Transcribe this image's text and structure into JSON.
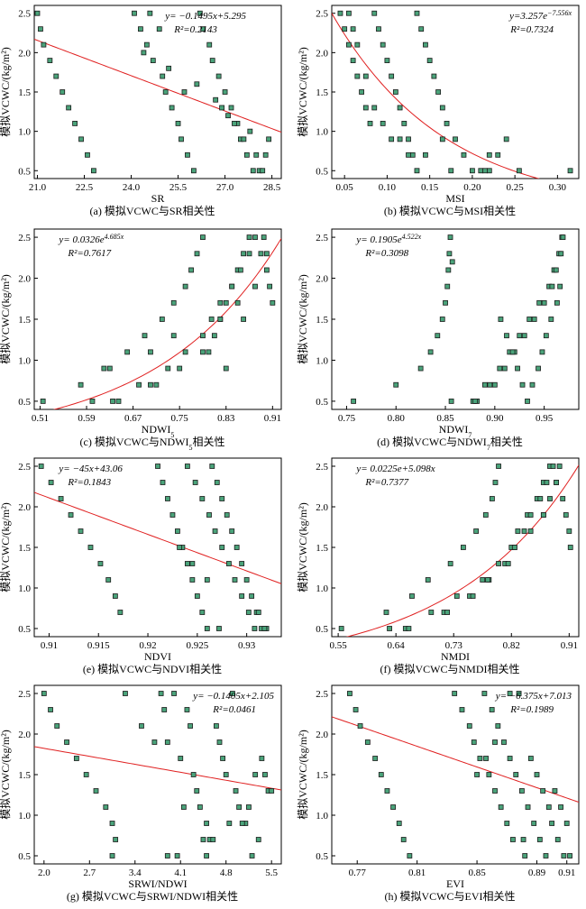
{
  "chart_data": [
    {
      "type": "scatter",
      "caption": "(a) 模拟VCWC与SR相关性",
      "xlabel": "SR",
      "ylabel": "模拟VCWC/(kg/m²)",
      "xlim": [
        20.9,
        28.8
      ],
      "ylim": [
        0.4,
        2.6
      ],
      "xticks": [
        21.0,
        22.5,
        24.0,
        25.5,
        27.0,
        28.5
      ],
      "xtick_labels": [
        "21.0",
        "22.5",
        "24.0",
        "25.5",
        "27.0",
        "28.5"
      ],
      "yticks": [
        0.5,
        1.0,
        1.5,
        2.0,
        2.5
      ],
      "ytick_labels": [
        "0.5",
        "1.0",
        "1.5",
        "2.0",
        "2.5"
      ],
      "equation": "y= −0.1495x+5.295",
      "r2": "R²=0.2143",
      "equation_pos": "top-center",
      "fit": {
        "kind": "linear",
        "a": -0.1495,
        "b": 5.295
      },
      "x": [
        21.0,
        21.1,
        21.2,
        21.4,
        21.6,
        21.8,
        22.0,
        22.2,
        22.4,
        22.6,
        22.8,
        24.1,
        24.3,
        24.5,
        24.7,
        25.0,
        25.1,
        25.3,
        25.5,
        25.6,
        25.8,
        26.0,
        26.2,
        26.3,
        26.5,
        26.6,
        26.8,
        27.0,
        27.2,
        27.4,
        27.5,
        27.7,
        27.9,
        28.1,
        28.3,
        28.4,
        24.6,
        24.9,
        25.7,
        26.9,
        27.3,
        27.6,
        28.0,
        28.2,
        24.4,
        25.2,
        26.1,
        26.7,
        27.1,
        27.8
      ],
      "y": [
        2.5,
        2.3,
        2.1,
        1.9,
        1.7,
        1.5,
        1.3,
        1.1,
        0.9,
        0.7,
        0.5,
        2.5,
        2.3,
        2.1,
        1.9,
        1.7,
        1.5,
        1.3,
        1.1,
        0.9,
        0.7,
        0.5,
        2.5,
        2.3,
        2.1,
        1.9,
        1.7,
        1.5,
        1.3,
        1.1,
        0.9,
        0.7,
        0.5,
        0.5,
        0.7,
        0.9,
        2.5,
        2.3,
        1.5,
        1.3,
        1.1,
        0.9,
        0.7,
        0.5,
        2.0,
        1.8,
        1.6,
        1.4,
        1.2,
        1.0
      ]
    },
    {
      "type": "scatter",
      "caption": "(b) 模拟VCWC与MSI相关性",
      "xlabel": "MSI",
      "ylabel": "模拟VCWC/(kg/m²)",
      "xlim": [
        0.035,
        0.325
      ],
      "ylim": [
        0.4,
        2.6
      ],
      "xticks": [
        0.05,
        0.1,
        0.15,
        0.2,
        0.25,
        0.3
      ],
      "xtick_labels": [
        "0.05",
        "0.10",
        "0.15",
        "0.20",
        "0.25",
        "0.30"
      ],
      "yticks": [
        0.5,
        1.0,
        1.5,
        2.0,
        2.5
      ],
      "ytick_labels": [
        "0.5",
        "1.0",
        "1.5",
        "2.0",
        "2.5"
      ],
      "equation": "y=3.257e^(−7.556x)",
      "r2": "R²=0.7324",
      "equation_pos": "top-right",
      "fit": {
        "kind": "exp",
        "a": 3.257,
        "b": -7.556
      },
      "x": [
        0.045,
        0.05,
        0.055,
        0.06,
        0.065,
        0.07,
        0.075,
        0.08,
        0.085,
        0.09,
        0.095,
        0.1,
        0.105,
        0.11,
        0.115,
        0.12,
        0.125,
        0.13,
        0.135,
        0.14,
        0.145,
        0.15,
        0.155,
        0.16,
        0.165,
        0.17,
        0.18,
        0.19,
        0.2,
        0.21,
        0.22,
        0.23,
        0.24,
        0.255,
        0.315,
        0.055,
        0.065,
        0.075,
        0.085,
        0.095,
        0.105,
        0.115,
        0.125,
        0.135,
        0.145,
        0.165,
        0.175,
        0.215,
        0.22,
        0.06
      ],
      "y": [
        2.5,
        2.3,
        2.1,
        1.9,
        1.7,
        1.5,
        1.3,
        1.1,
        2.5,
        2.3,
        2.1,
        1.9,
        1.7,
        1.5,
        1.3,
        1.1,
        0.9,
        0.7,
        2.5,
        2.3,
        2.1,
        1.9,
        1.7,
        1.5,
        1.3,
        1.1,
        0.9,
        0.7,
        0.5,
        0.5,
        0.5,
        0.7,
        0.9,
        0.5,
        0.5,
        2.5,
        2.1,
        1.7,
        1.3,
        1.1,
        0.9,
        0.9,
        0.7,
        0.5,
        0.7,
        0.9,
        0.5,
        0.5,
        0.7,
        2.3
      ]
    },
    {
      "type": "scatter",
      "caption": "(c) 模拟VCWC与NDWI5相关性",
      "xlabel": "NDWI5",
      "ylabel": "模拟VCWC/(kg/m²)",
      "xlim": [
        0.5,
        0.925
      ],
      "ylim": [
        0.4,
        2.6
      ],
      "xticks": [
        0.51,
        0.59,
        0.67,
        0.75,
        0.83,
        0.91
      ],
      "xtick_labels": [
        "0.51",
        "0.59",
        "0.67",
        "0.75",
        "0.83",
        "0.91"
      ],
      "yticks": [
        0.5,
        1.0,
        1.5,
        2.0,
        2.5
      ],
      "ytick_labels": [
        "0.5",
        "1.0",
        "1.5",
        "2.0",
        "2.5"
      ],
      "equation": "y= 0.0326e^(4.685x)",
      "r2": "R²=0.7617",
      "equation_pos": "top-left",
      "fit": {
        "kind": "exp",
        "a": 0.0326,
        "b": 4.685
      },
      "x": [
        0.515,
        0.58,
        0.6,
        0.62,
        0.635,
        0.645,
        0.66,
        0.68,
        0.69,
        0.7,
        0.71,
        0.72,
        0.73,
        0.74,
        0.75,
        0.76,
        0.77,
        0.78,
        0.79,
        0.8,
        0.81,
        0.82,
        0.83,
        0.84,
        0.85,
        0.86,
        0.87,
        0.88,
        0.89,
        0.9,
        0.905,
        0.91,
        0.76,
        0.79,
        0.82,
        0.85,
        0.88,
        0.87,
        0.855,
        0.84,
        0.82,
        0.805,
        0.895,
        0.9,
        0.86,
        0.63,
        0.7,
        0.74,
        0.79,
        0.83
      ],
      "y": [
        0.5,
        0.7,
        0.5,
        0.9,
        0.5,
        0.5,
        1.1,
        0.7,
        1.3,
        0.7,
        0.7,
        1.5,
        0.9,
        1.7,
        0.9,
        1.9,
        2.1,
        2.3,
        2.5,
        1.1,
        1.3,
        1.5,
        1.7,
        1.9,
        2.1,
        2.3,
        2.5,
        2.5,
        2.3,
        2.1,
        1.9,
        1.7,
        1.1,
        1.3,
        1.5,
        1.7,
        1.9,
        2.3,
        2.1,
        1.9,
        1.7,
        1.5,
        2.5,
        2.3,
        1.5,
        0.9,
        1.1,
        1.3,
        1.1,
        0.9
      ]
    },
    {
      "type": "scatter",
      "caption": "(d) 模拟VCWC与NDWI7相关性",
      "xlabel": "NDWI7",
      "ylabel": "模拟VCWC/(kg/m²)",
      "xlim": [
        0.735,
        0.985
      ],
      "ylim": [
        0.4,
        2.6
      ],
      "xticks": [
        0.75,
        0.8,
        0.85,
        0.9,
        0.95
      ],
      "xtick_labels": [
        "0.75",
        "0.80",
        "0.85",
        "0.90",
        "0.95"
      ],
      "yticks": [
        0.5,
        1.0,
        1.5,
        2.0,
        2.5
      ],
      "ytick_labels": [
        "0.5",
        "1.0",
        "1.5",
        "2.0",
        "2.5"
      ],
      "equation": "y= 0.1905e^(4.522x)",
      "r2": "R²=0.3098",
      "equation_pos": "top-left",
      "fit": {
        "kind": "exp",
        "a": 0.1905,
        "b": 4.522
      },
      "x": [
        0.757,
        0.8,
        0.825,
        0.835,
        0.842,
        0.847,
        0.85,
        0.852,
        0.853,
        0.854,
        0.855,
        0.856,
        0.857,
        0.878,
        0.882,
        0.89,
        0.895,
        0.905,
        0.91,
        0.915,
        0.92,
        0.925,
        0.93,
        0.935,
        0.94,
        0.945,
        0.95,
        0.955,
        0.958,
        0.96,
        0.962,
        0.965,
        0.967,
        0.968,
        0.969,
        0.966,
        0.963,
        0.957,
        0.952,
        0.948,
        0.944,
        0.938,
        0.933,
        0.928,
        0.923,
        0.918,
        0.912,
        0.906,
        0.9,
        0.88
      ],
      "y": [
        0.5,
        0.7,
        0.9,
        1.1,
        1.3,
        1.5,
        1.7,
        1.9,
        2.1,
        2.3,
        2.5,
        0.5,
        2.2,
        0.5,
        0.5,
        0.7,
        0.7,
        0.9,
        0.9,
        1.1,
        1.1,
        1.3,
        1.3,
        1.5,
        1.5,
        1.7,
        1.7,
        1.9,
        1.9,
        2.1,
        2.1,
        2.3,
        2.3,
        2.5,
        2.5,
        1.9,
        1.7,
        1.5,
        1.3,
        1.1,
        0.9,
        0.7,
        0.5,
        0.7,
        0.9,
        1.1,
        1.3,
        1.5,
        0.7,
        0.5
      ]
    },
    {
      "type": "scatter",
      "caption": "(e) 模拟VCWC与NDVI相关性",
      "xlabel": "NDVI",
      "ylabel": "模拟VCWC/(kg/m²)",
      "xlim": [
        0.9085,
        0.9335
      ],
      "ylim": [
        0.4,
        2.6
      ],
      "xticks": [
        0.91,
        0.915,
        0.92,
        0.925,
        0.93
      ],
      "xtick_labels": [
        "0.91",
        "0.915",
        "0.92",
        "0.925",
        "0.93"
      ],
      "yticks": [
        0.5,
        1.0,
        1.5,
        2.0,
        2.5
      ],
      "ytick_labels": [
        "0.5",
        "1.0",
        "1.5",
        "2.0",
        "2.5"
      ],
      "equation": "y= −45x+43.06",
      "r2": "R²=0.1843",
      "equation_pos": "top-left",
      "fit": {
        "kind": "linear",
        "a": -45,
        "b": 43.06
      },
      "x": [
        0.9092,
        0.9102,
        0.9112,
        0.9122,
        0.9132,
        0.9142,
        0.9152,
        0.916,
        0.9167,
        0.9172,
        0.921,
        0.9215,
        0.922,
        0.9225,
        0.923,
        0.9235,
        0.924,
        0.9245,
        0.925,
        0.9255,
        0.926,
        0.9265,
        0.927,
        0.9275,
        0.928,
        0.9285,
        0.929,
        0.9295,
        0.93,
        0.9305,
        0.931,
        0.9315,
        0.932,
        0.924,
        0.9248,
        0.9255,
        0.9262,
        0.9268,
        0.9275,
        0.9282,
        0.9288,
        0.9295,
        0.9302,
        0.9308,
        0.9312,
        0.9318,
        0.9232,
        0.9245,
        0.926,
        0.9272
      ],
      "y": [
        2.5,
        2.3,
        2.1,
        1.9,
        1.7,
        1.5,
        1.3,
        1.1,
        0.9,
        0.7,
        2.5,
        2.3,
        2.1,
        1.9,
        1.7,
        1.5,
        1.3,
        1.1,
        0.9,
        0.7,
        0.5,
        2.5,
        2.3,
        2.1,
        1.9,
        1.7,
        1.5,
        1.3,
        1.1,
        0.9,
        0.7,
        0.5,
        0.5,
        2.5,
        2.3,
        2.1,
        1.9,
        1.7,
        1.5,
        1.3,
        1.1,
        0.9,
        0.7,
        0.5,
        0.7,
        0.5,
        1.5,
        1.3,
        1.1,
        0.5
      ]
    },
    {
      "type": "scatter",
      "caption": "(f) 模拟VCWC与NMDI相关性",
      "xlabel": "NMDI",
      "ylabel": "模拟VCWC/(kg/m²)",
      "xlim": [
        0.54,
        0.925
      ],
      "ylim": [
        0.4,
        2.6
      ],
      "xticks": [
        0.55,
        0.64,
        0.73,
        0.82,
        0.91
      ],
      "xtick_labels": [
        "0.55",
        "0.64",
        "0.73",
        "0.82",
        "0.91"
      ],
      "yticks": [
        0.5,
        1.0,
        1.5,
        2.0,
        2.5
      ],
      "ytick_labels": [
        "0.5",
        "1.0",
        "1.5",
        "2.0",
        "2.5"
      ],
      "equation": "y= 0.0225e+5.098x",
      "r2": "R²=0.7377",
      "equation_pos": "top-left",
      "fit": {
        "kind": "exp",
        "a": 0.0225,
        "b": 5.098
      },
      "x": [
        0.555,
        0.625,
        0.63,
        0.655,
        0.66,
        0.665,
        0.69,
        0.695,
        0.715,
        0.72,
        0.725,
        0.735,
        0.745,
        0.755,
        0.76,
        0.765,
        0.775,
        0.78,
        0.785,
        0.79,
        0.795,
        0.8,
        0.81,
        0.815,
        0.82,
        0.825,
        0.83,
        0.84,
        0.845,
        0.85,
        0.86,
        0.865,
        0.87,
        0.875,
        0.88,
        0.885,
        0.89,
        0.895,
        0.9,
        0.905,
        0.91,
        0.912,
        0.783,
        0.8,
        0.825,
        0.85,
        0.87,
        0.88,
        0.87,
        0.89
      ],
      "y": [
        0.5,
        0.7,
        0.5,
        0.5,
        0.5,
        0.9,
        1.1,
        0.7,
        0.7,
        0.7,
        1.3,
        0.9,
        1.5,
        0.9,
        0.9,
        1.7,
        1.1,
        1.9,
        1.1,
        2.1,
        2.3,
        2.5,
        1.3,
        1.3,
        1.5,
        1.5,
        1.7,
        1.7,
        1.9,
        1.9,
        2.1,
        2.1,
        2.3,
        2.3,
        2.5,
        2.5,
        2.3,
        2.5,
        2.1,
        1.9,
        1.7,
        1.5,
        1.1,
        1.3,
        1.5,
        1.7,
        1.9,
        2.1,
        1.9,
        2.3
      ]
    },
    {
      "type": "scatter",
      "caption": "(g) 模拟VCWC与SRWI/NDWI相关性",
      "xlabel": "SRWI/NDWI",
      "ylabel": "模拟VCWC/(kg/m²)",
      "xlim": [
        1.85,
        5.65
      ],
      "ylim": [
        0.4,
        2.6
      ],
      "xticks": [
        2.0,
        2.7,
        3.4,
        4.1,
        4.8,
        5.5
      ],
      "xtick_labels": [
        "2.0",
        "2.7",
        "3.4",
        "4.1",
        "4.8",
        "5.5"
      ],
      "yticks": [
        0.5,
        1.0,
        1.5,
        2.0,
        2.5
      ],
      "ytick_labels": [
        "0.5",
        "1.0",
        "1.5",
        "2.0",
        "2.5"
      ],
      "equation": "y= −0.1405x+2.105",
      "r2": "R²=0.0461",
      "equation_pos": "top-right",
      "fit": {
        "kind": "linear",
        "a": -0.1405,
        "b": 2.105
      },
      "x": [
        2.0,
        2.1,
        2.2,
        2.35,
        2.5,
        2.65,
        2.8,
        2.95,
        3.05,
        3.1,
        3.05,
        3.25,
        3.5,
        3.7,
        3.8,
        3.85,
        3.9,
        4.0,
        4.05,
        4.1,
        4.2,
        4.25,
        4.3,
        4.35,
        4.4,
        4.5,
        4.55,
        4.6,
        4.65,
        4.7,
        4.75,
        4.8,
        4.9,
        4.95,
        5.0,
        5.1,
        5.2,
        5.3,
        5.4,
        5.45,
        5.5,
        5.35,
        5.25,
        5.15,
        5.05,
        4.85,
        4.45,
        3.9,
        4.15,
        4.5
      ],
      "y": [
        2.5,
        2.3,
        2.1,
        1.9,
        1.7,
        1.5,
        1.3,
        1.1,
        0.9,
        0.7,
        0.5,
        2.5,
        2.1,
        1.9,
        2.5,
        2.3,
        0.5,
        2.5,
        0.5,
        1.7,
        2.3,
        2.1,
        1.5,
        1.3,
        1.1,
        0.9,
        0.7,
        0.7,
        2.1,
        1.9,
        1.7,
        1.5,
        2.5,
        1.3,
        1.1,
        0.9,
        0.5,
        0.7,
        1.5,
        1.3,
        1.3,
        1.7,
        1.5,
        1.1,
        0.9,
        0.9,
        0.7,
        1.9,
        1.1,
        0.5
      ]
    },
    {
      "type": "scatter",
      "caption": "(h) 模拟VCWC与EVI相关性",
      "xlabel": "EVI",
      "ylabel": "模拟VCWC/(kg/m²)",
      "xlim": [
        0.753,
        0.918
      ],
      "ylim": [
        0.4,
        2.6
      ],
      "xticks": [
        0.77,
        0.81,
        0.85,
        0.89,
        0.91
      ],
      "xtick_labels": [
        "0.77",
        "0.81",
        "0.85",
        "0.89",
        "0.91"
      ],
      "yticks": [
        0.5,
        1.0,
        1.5,
        2.0,
        2.5
      ],
      "ytick_labels": [
        "0.5",
        "1.0",
        "1.5",
        "2.0",
        "2.5"
      ],
      "equation": "y= −6.375x+7.013",
      "r2": "R²=0.1989",
      "equation_pos": "top-right",
      "fit": {
        "kind": "linear",
        "a": -6.375,
        "b": 7.013
      },
      "x": [
        0.765,
        0.769,
        0.772,
        0.777,
        0.782,
        0.786,
        0.79,
        0.794,
        0.798,
        0.801,
        0.805,
        0.835,
        0.84,
        0.845,
        0.848,
        0.852,
        0.855,
        0.858,
        0.86,
        0.862,
        0.864,
        0.866,
        0.868,
        0.87,
        0.872,
        0.874,
        0.876,
        0.878,
        0.88,
        0.882,
        0.884,
        0.886,
        0.888,
        0.89,
        0.892,
        0.894,
        0.896,
        0.898,
        0.9,
        0.902,
        0.904,
        0.906,
        0.908,
        0.91,
        0.912,
        0.85,
        0.856,
        0.862,
        0.872,
        0.881
      ],
      "y": [
        2.5,
        2.3,
        2.1,
        1.9,
        1.7,
        1.5,
        1.3,
        1.1,
        0.9,
        0.7,
        0.5,
        2.5,
        2.3,
        2.1,
        1.9,
        1.7,
        2.5,
        1.5,
        2.3,
        1.3,
        2.1,
        1.1,
        1.9,
        0.9,
        1.7,
        0.7,
        1.5,
        2.5,
        1.3,
        0.5,
        1.1,
        1.7,
        0.9,
        1.5,
        0.7,
        1.3,
        0.5,
        1.1,
        0.9,
        1.3,
        0.7,
        1.1,
        0.5,
        0.9,
        0.5,
        1.5,
        1.7,
        1.9,
        2.5,
        0.7
      ]
    }
  ],
  "colors": {
    "marker_fill": "#4aa37a",
    "marker_stroke": "#1b1b1b",
    "fit_line": "#e02020",
    "axis": "#000000"
  }
}
